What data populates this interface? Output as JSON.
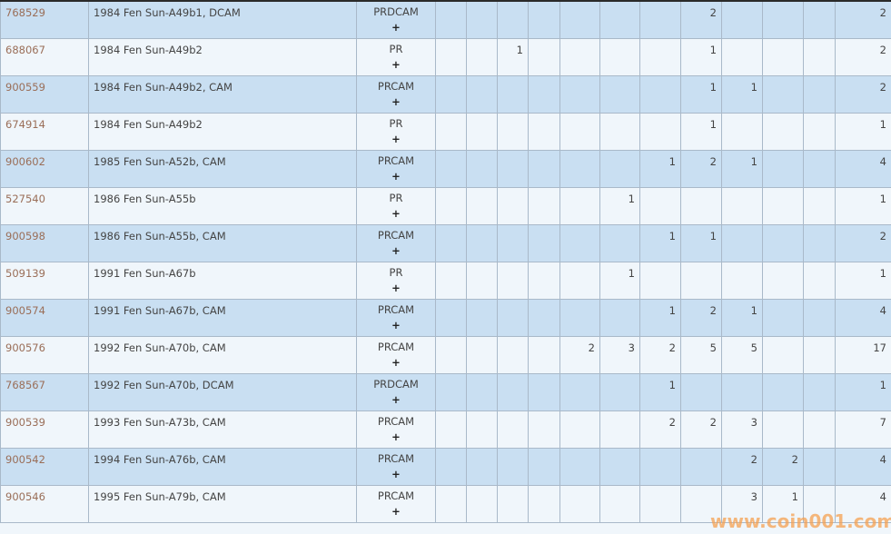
{
  "colors": {
    "row_odd": "#c9dff2",
    "row_even": "#f0f6fb",
    "link": "#9a6e58",
    "border": "#a9b9c9"
  },
  "plus_icon": "+",
  "rows": [
    {
      "id": "768529",
      "desc": "1984 Fen Sun-A49b1, DCAM",
      "designation": "PRDCAM",
      "counts": [
        "",
        "",
        "",
        "",
        "",
        "",
        "",
        "2",
        "",
        "",
        "",
        ""
      ],
      "total": "2"
    },
    {
      "id": "688067",
      "desc": "1984 Fen Sun-A49b2",
      "designation": "PR",
      "counts": [
        "",
        "",
        "1",
        "",
        "",
        "",
        "",
        "1",
        "",
        "",
        "",
        ""
      ],
      "total": "2"
    },
    {
      "id": "900559",
      "desc": "1984 Fen Sun-A49b2, CAM",
      "designation": "PRCAM",
      "counts": [
        "",
        "",
        "",
        "",
        "",
        "",
        "",
        "1",
        "1",
        "",
        "",
        ""
      ],
      "total": "2"
    },
    {
      "id": "674914",
      "desc": "1984 Fen Sun-A49b2",
      "designation": "PR",
      "counts": [
        "",
        "",
        "",
        "",
        "",
        "",
        "",
        "1",
        "",
        "",
        "",
        ""
      ],
      "total": "1"
    },
    {
      "id": "900602",
      "desc": "1985 Fen Sun-A52b, CAM",
      "designation": "PRCAM",
      "counts": [
        "",
        "",
        "",
        "",
        "",
        "",
        "1",
        "2",
        "1",
        "",
        "",
        ""
      ],
      "total": "4"
    },
    {
      "id": "527540",
      "desc": "1986 Fen Sun-A55b",
      "designation": "PR",
      "counts": [
        "",
        "",
        "",
        "",
        "",
        "1",
        "",
        "",
        "",
        "",
        "",
        ""
      ],
      "total": "1"
    },
    {
      "id": "900598",
      "desc": "1986 Fen Sun-A55b, CAM",
      "designation": "PRCAM",
      "counts": [
        "",
        "",
        "",
        "",
        "",
        "",
        "1",
        "1",
        "",
        "",
        "",
        ""
      ],
      "total": "2"
    },
    {
      "id": "509139",
      "desc": "1991 Fen Sun-A67b",
      "designation": "PR",
      "counts": [
        "",
        "",
        "",
        "",
        "",
        "1",
        "",
        "",
        "",
        "",
        "",
        ""
      ],
      "total": "1"
    },
    {
      "id": "900574",
      "desc": "1991 Fen Sun-A67b, CAM",
      "designation": "PRCAM",
      "counts": [
        "",
        "",
        "",
        "",
        "",
        "",
        "1",
        "2",
        "1",
        "",
        "",
        ""
      ],
      "total": "4"
    },
    {
      "id": "900576",
      "desc": "1992 Fen Sun-A70b, CAM",
      "designation": "PRCAM",
      "counts": [
        "",
        "",
        "",
        "",
        "2",
        "3",
        "2",
        "5",
        "5",
        "",
        "",
        ""
      ],
      "total": "17"
    },
    {
      "id": "768567",
      "desc": "1992 Fen Sun-A70b, DCAM",
      "designation": "PRDCAM",
      "counts": [
        "",
        "",
        "",
        "",
        "",
        "",
        "1",
        "",
        "",
        "",
        "",
        ""
      ],
      "total": "1"
    },
    {
      "id": "900539",
      "desc": "1993 Fen Sun-A73b, CAM",
      "designation": "PRCAM",
      "counts": [
        "",
        "",
        "",
        "",
        "",
        "",
        "2",
        "2",
        "3",
        "",
        "",
        ""
      ],
      "total": "7"
    },
    {
      "id": "900542",
      "desc": "1994 Fen Sun-A76b, CAM",
      "designation": "PRCAM",
      "counts": [
        "",
        "",
        "",
        "",
        "",
        "",
        "",
        "",
        "2",
        "2",
        "",
        ""
      ],
      "total": "4"
    },
    {
      "id": "900546",
      "desc": "1995 Fen Sun-A79b, CAM",
      "designation": "PRCAM",
      "counts": [
        "",
        "",
        "",
        "",
        "",
        "",
        "",
        "",
        "3",
        "1",
        "",
        ""
      ],
      "total": "4"
    }
  ],
  "watermark": "www.coin001.com"
}
